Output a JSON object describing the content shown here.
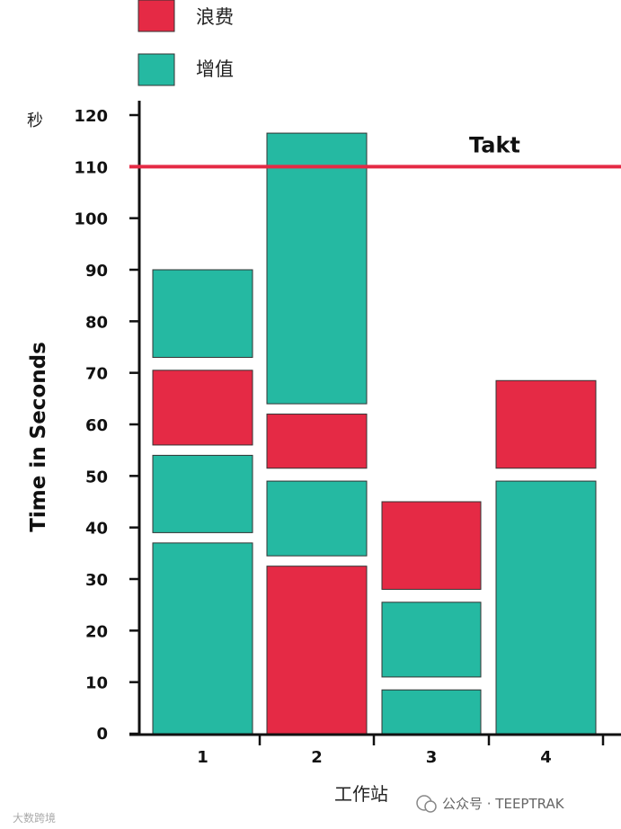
{
  "legend": [
    {
      "label": "浪费",
      "color": "#E52A45"
    },
    {
      "label": "增值",
      "color": "#25B9A2"
    }
  ],
  "chart_data": {
    "type": "bar",
    "stacked": true,
    "ylabel": "Time in Seconds",
    "y_unit": "秒",
    "xlabel": "工作站",
    "ylim": [
      0,
      120
    ],
    "yticks": [
      0,
      10,
      20,
      30,
      40,
      50,
      60,
      70,
      80,
      90,
      100,
      110,
      120
    ],
    "categories": [
      "1",
      "2",
      "3",
      "4"
    ],
    "takt": {
      "label": "Takt",
      "value": 110,
      "color": "#E52A45"
    },
    "stations": [
      {
        "station": "1",
        "segments": [
          {
            "type": "增值",
            "start": 0,
            "end": 37
          },
          {
            "type": "增值",
            "start": 39,
            "end": 54
          },
          {
            "type": "浪费",
            "start": 56,
            "end": 70.5
          },
          {
            "type": "增值",
            "start": 73,
            "end": 90
          }
        ]
      },
      {
        "station": "2",
        "segments": [
          {
            "type": "浪费",
            "start": 0,
            "end": 32.5
          },
          {
            "type": "增值",
            "start": 34.5,
            "end": 49
          },
          {
            "type": "浪费",
            "start": 51.5,
            "end": 62
          },
          {
            "type": "增值",
            "start": 64,
            "end": 116.5
          }
        ]
      },
      {
        "station": "3",
        "segments": [
          {
            "type": "增值",
            "start": 0,
            "end": 8.5
          },
          {
            "type": "增值",
            "start": 11,
            "end": 25.5
          },
          {
            "type": "浪费",
            "start": 28,
            "end": 45
          }
        ]
      },
      {
        "station": "4",
        "segments": [
          {
            "type": "增值",
            "start": 0,
            "end": 49
          },
          {
            "type": "浪费",
            "start": 51.5,
            "end": 68.5
          }
        ]
      }
    ]
  },
  "watermark": {
    "right": "公众号 · TEEPTRAK",
    "left": "大数跨境"
  }
}
